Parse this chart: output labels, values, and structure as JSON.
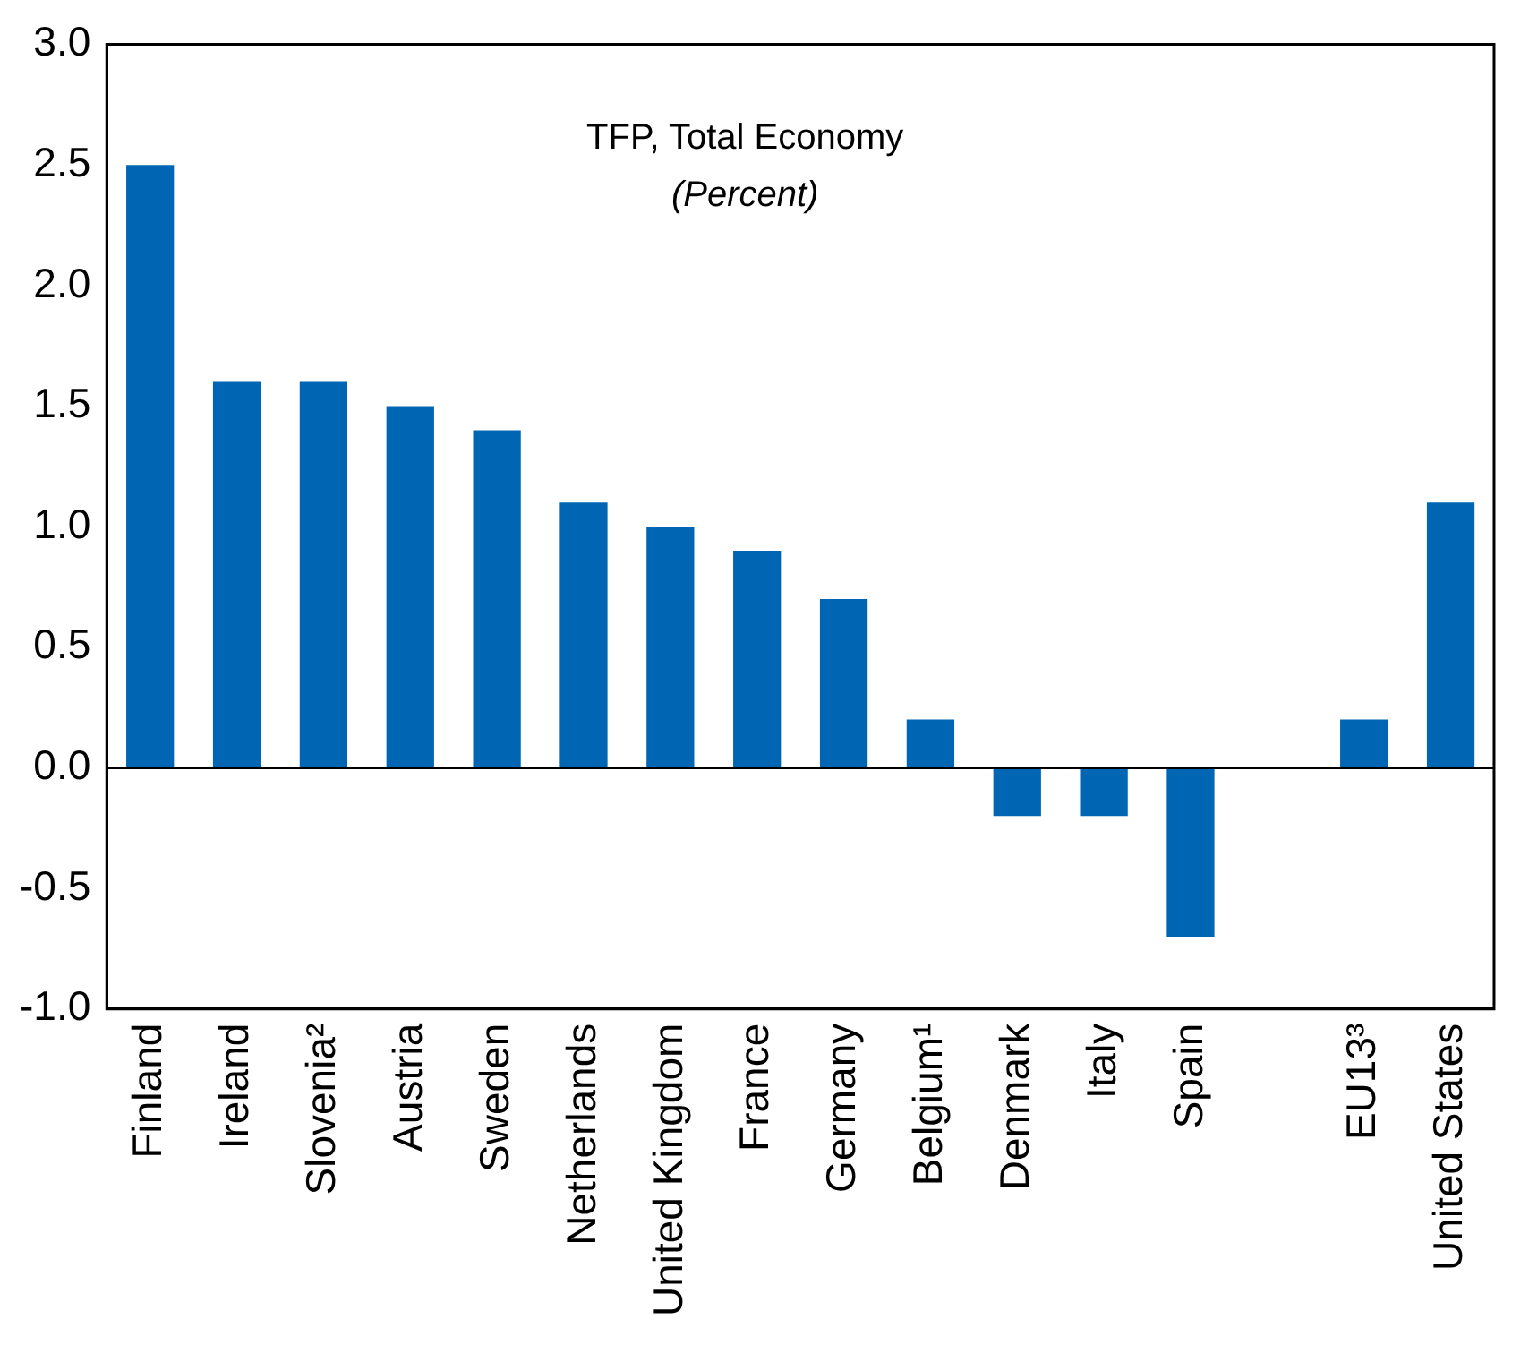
{
  "chart_data": {
    "type": "bar",
    "title": "TFP, Total Economy",
    "subtitle": "(Percent)",
    "categories": [
      "Finland",
      "Ireland",
      "Slovenia²",
      "Austria",
      "Sweden",
      "Netherlands",
      "United Kingdom",
      "France",
      "Germany",
      "Belgium¹",
      "Denmark",
      "Italy",
      "Spain",
      null,
      "EU13³",
      "United States"
    ],
    "values": [
      2.5,
      1.6,
      1.6,
      1.5,
      1.4,
      1.1,
      1.0,
      0.9,
      0.7,
      0.2,
      -0.2,
      -0.2,
      -0.7,
      null,
      0.2,
      1.1
    ],
    "color": "#0066b3",
    "ylim": [
      -1,
      3
    ],
    "yticks": [
      {
        "value": -1,
        "label": "-1.0"
      },
      {
        "value": -0.5,
        "label": "-0.5"
      },
      {
        "value": 0,
        "label": "0.0"
      },
      {
        "value": 0.5,
        "label": "0.5"
      },
      {
        "value": 1,
        "label": "1.0"
      },
      {
        "value": 1.5,
        "label": "1.5"
      },
      {
        "value": 2,
        "label": "2.0"
      },
      {
        "value": 2.5,
        "label": "2.5"
      },
      {
        "value": 3,
        "label": "3.0"
      }
    ],
    "ref_lines": [
      {
        "axis": "y",
        "value": 0
      }
    ],
    "grid": false,
    "legend": false
  }
}
